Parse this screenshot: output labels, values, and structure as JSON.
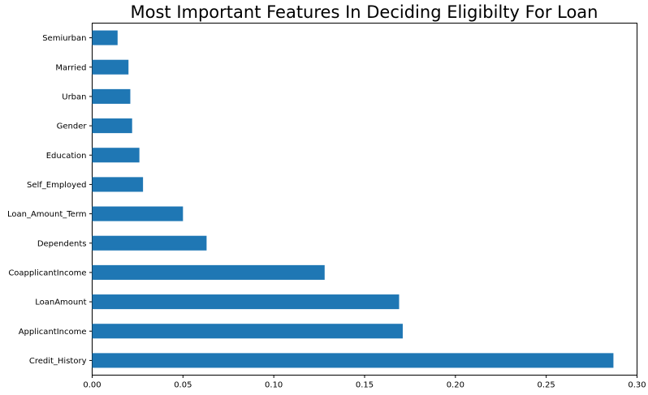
{
  "chart_data": {
    "type": "bar",
    "orientation": "horizontal",
    "title": "Most Important Features In Deciding Eligibilty For Loan",
    "xlabel": "",
    "ylabel": "",
    "categories": [
      "Credit_History",
      "ApplicantIncome",
      "LoanAmount",
      "CoapplicantIncome",
      "Dependents",
      "Loan_Amount_Term",
      "Self_Employed",
      "Education",
      "Gender",
      "Urban",
      "Married",
      "Semiurban"
    ],
    "values": [
      0.287,
      0.171,
      0.169,
      0.128,
      0.063,
      0.05,
      0.028,
      0.026,
      0.022,
      0.021,
      0.02,
      0.014
    ],
    "xlim": [
      0,
      0.3
    ],
    "xticks": [
      "0.00",
      "0.05",
      "0.10",
      "0.15",
      "0.20",
      "0.25",
      "0.30"
    ],
    "grid": false,
    "bar_color": "#1f77b4"
  }
}
